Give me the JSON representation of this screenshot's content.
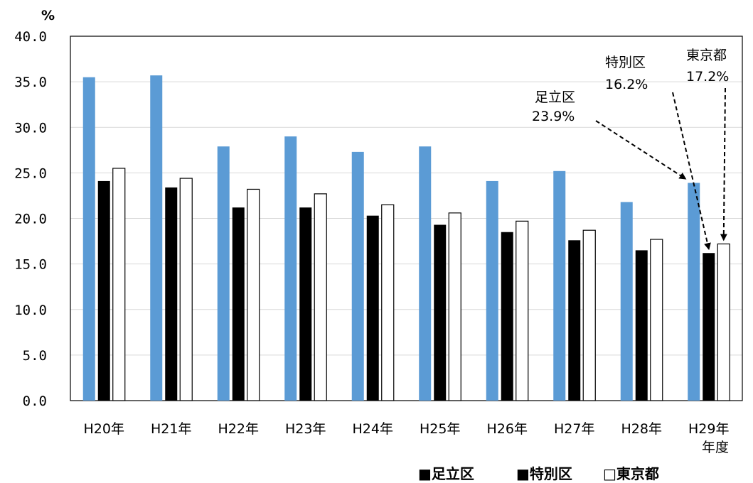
{
  "chart_data": {
    "type": "bar",
    "ylabel": "%",
    "xlabel": "年度",
    "ylim": [
      0,
      40
    ],
    "y_ticks": [
      "0.0",
      "5.0",
      "10.0",
      "15.0",
      "20.0",
      "25.0",
      "30.0",
      "35.0",
      "40.0"
    ],
    "categories": [
      "H20年",
      "H21年",
      "H22年",
      "H23年",
      "H24年",
      "H25年",
      "H26年",
      "H27年",
      "H28年",
      "H29年"
    ],
    "grid": true,
    "legend_position": "bottom-right",
    "series": [
      {
        "name": "足立区",
        "legend_label": "■足立区",
        "color": "#5b9bd5",
        "values": [
          35.5,
          35.7,
          27.9,
          29.0,
          27.3,
          27.9,
          24.1,
          25.2,
          21.8,
          23.9
        ]
      },
      {
        "name": "特別区",
        "legend_label": "■特別区",
        "color": "#000000",
        "values": [
          24.1,
          23.4,
          21.2,
          21.2,
          20.3,
          19.3,
          18.5,
          17.6,
          16.5,
          16.2
        ]
      },
      {
        "name": "東京都",
        "legend_label": "□東京都",
        "color": "#ffffff",
        "values": [
          25.5,
          24.4,
          23.2,
          22.7,
          21.5,
          20.6,
          19.7,
          18.7,
          17.7,
          17.2
        ]
      }
    ],
    "annotations": [
      {
        "series": "足立区",
        "name_text": "足立区",
        "value_text": "23.9%"
      },
      {
        "series": "特別区",
        "name_text": "特別区",
        "value_text": "16.2%"
      },
      {
        "series": "東京都",
        "name_text": "東京都",
        "value_text": "17.2%"
      }
    ]
  }
}
